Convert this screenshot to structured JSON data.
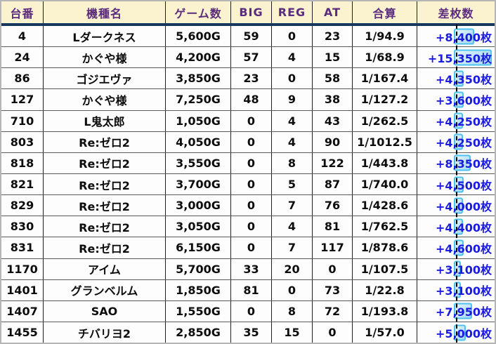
{
  "table": {
    "columns": [
      {
        "label": "台番"
      },
      {
        "label": "機種名"
      },
      {
        "label": "ゲーム数"
      },
      {
        "label": "BIG"
      },
      {
        "label": "REG"
      },
      {
        "label": "AT"
      },
      {
        "label": "合算"
      },
      {
        "label": "差枚数"
      }
    ],
    "rows": [
      {
        "dai": "4",
        "model": "Lダークネス",
        "games": "5,600G",
        "big": "59",
        "reg": "0",
        "at": "23",
        "gassan": "1/94.9",
        "samai": "+8,400枚",
        "hl_w": 29
      },
      {
        "dai": "24",
        "model": "かぐや様",
        "games": "4,200G",
        "big": "57",
        "reg": "4",
        "at": "15",
        "gassan": "1/68.9",
        "samai": "+15,350枚",
        "hl_w": 54
      },
      {
        "dai": "86",
        "model": "ゴジエヴァ",
        "games": "3,850G",
        "big": "23",
        "reg": "0",
        "at": "58",
        "gassan": "1/167.4",
        "samai": "+4,350枚",
        "hl_w": 14
      },
      {
        "dai": "127",
        "model": "かぐや様",
        "games": "7,250G",
        "big": "48",
        "reg": "9",
        "at": "38",
        "gassan": "1/127.2",
        "samai": "+3,600枚",
        "hl_w": 14
      },
      {
        "dai": "710",
        "model": "L鬼太郎",
        "games": "1,050G",
        "big": "0",
        "reg": "4",
        "at": "43",
        "gassan": "1/262.5",
        "samai": "+4,250枚",
        "hl_w": 13
      },
      {
        "dai": "803",
        "model": "Re:ゼロ2",
        "games": "4,050G",
        "big": "0",
        "reg": "4",
        "at": "90",
        "gassan": "1/1012.5",
        "samai": "+4,250枚",
        "hl_w": 13
      },
      {
        "dai": "818",
        "model": "Re:ゼロ2",
        "games": "3,550G",
        "big": "0",
        "reg": "8",
        "at": "122",
        "gassan": "1/443.8",
        "samai": "+8,350枚",
        "hl_w": 24
      },
      {
        "dai": "821",
        "model": "Re:ゼロ2",
        "games": "3,700G",
        "big": "0",
        "reg": "5",
        "at": "87",
        "gassan": "1/740.0",
        "samai": "+4,500枚",
        "hl_w": 14
      },
      {
        "dai": "829",
        "model": "Re:ゼロ2",
        "games": "3,000G",
        "big": "0",
        "reg": "7",
        "at": "76",
        "gassan": "1/428.6",
        "samai": "+4,000枚",
        "hl_w": 13
      },
      {
        "dai": "830",
        "model": "Re:ゼロ2",
        "games": "3,050G",
        "big": "0",
        "reg": "4",
        "at": "81",
        "gassan": "1/762.5",
        "samai": "+4,400枚",
        "hl_w": 13
      },
      {
        "dai": "831",
        "model": "Re:ゼロ2",
        "games": "6,150G",
        "big": "0",
        "reg": "7",
        "at": "117",
        "gassan": "1/878.6",
        "samai": "+4,600枚",
        "hl_w": 14
      },
      {
        "dai": "1170",
        "model": "アイム",
        "games": "5,700G",
        "big": "33",
        "reg": "20",
        "at": "0",
        "gassan": "1/107.5",
        "samai": "+3,100枚",
        "hl_w": 10
      },
      {
        "dai": "1401",
        "model": "グランベルム",
        "games": "1,850G",
        "big": "81",
        "reg": "0",
        "at": "73",
        "gassan": "1/22.8",
        "samai": "+3,100枚",
        "hl_w": 10
      },
      {
        "dai": "1407",
        "model": "SAO",
        "games": "1,550G",
        "big": "0",
        "reg": "8",
        "at": "72",
        "gassan": "1/193.8",
        "samai": "+7,950枚",
        "hl_w": 26
      },
      {
        "dai": "1455",
        "model": "チバリヨ2",
        "games": "2,850G",
        "big": "35",
        "reg": "15",
        "at": "0",
        "gassan": "1/57.0",
        "samai": "+5,000枚",
        "hl_w": 17
      }
    ]
  },
  "colors": {
    "header_bg": "#fbf2d0",
    "header_text": "#5b2b7d",
    "header_underline": "#17375e",
    "grid_line": "#1f1f1f",
    "row_line": "#5a5a5a",
    "data_text": "#0c0c0c",
    "payout_text": "#1b1be0",
    "highlight_fill": "#a5d9f4",
    "highlight_border": "#4ec2f0",
    "marquee_line": "#000000"
  }
}
